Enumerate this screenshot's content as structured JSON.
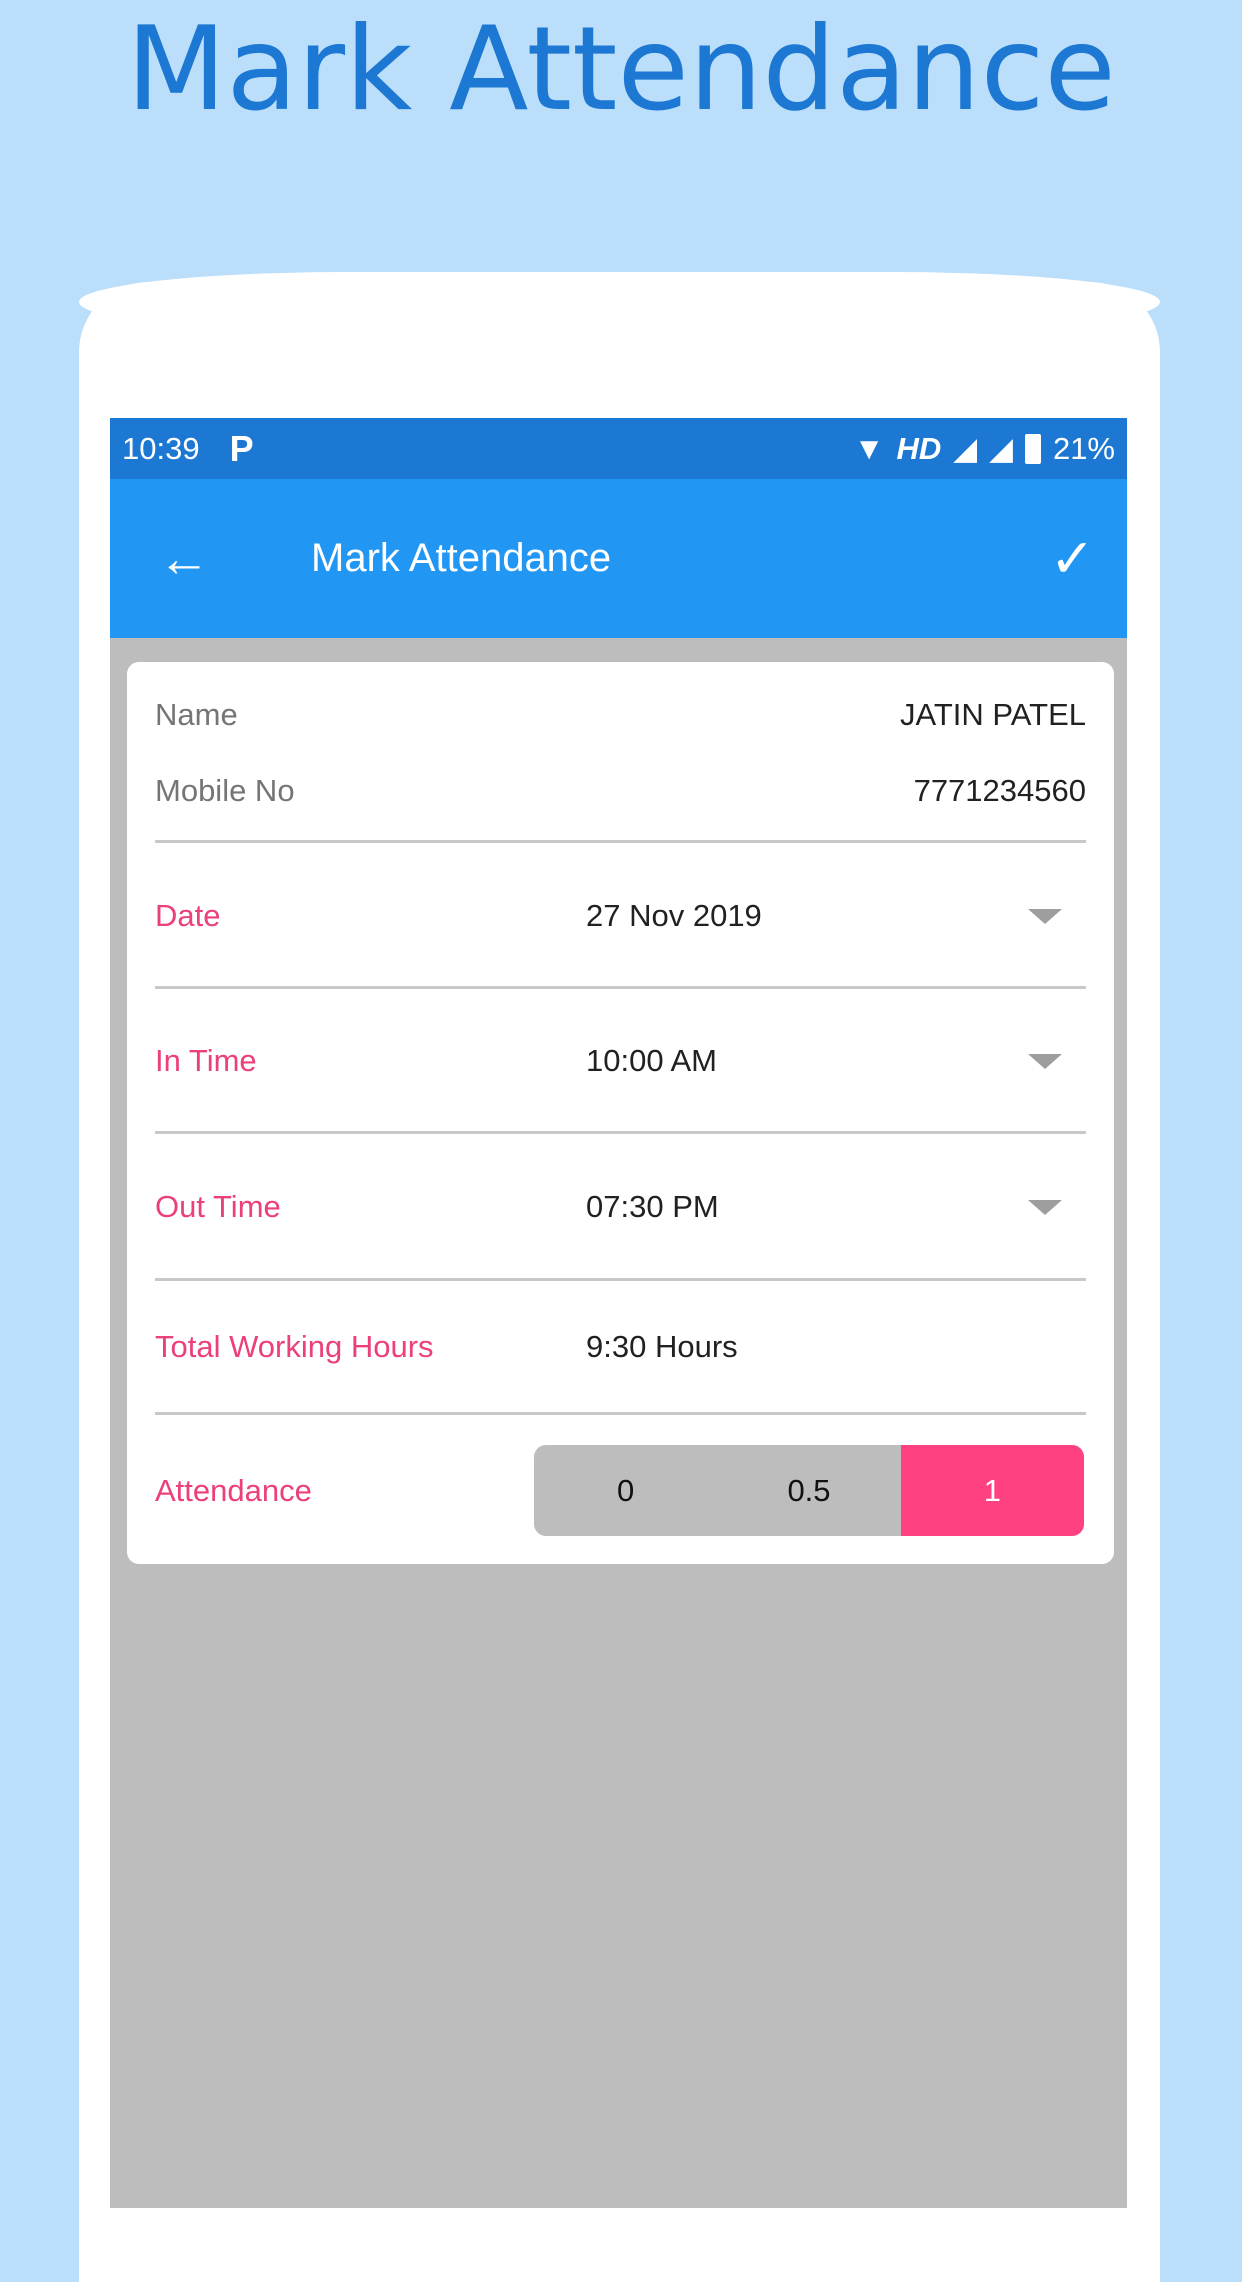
{
  "headline": "Mark Attendance",
  "status": {
    "time": "10:39",
    "app_icon": "p-icon",
    "network": "HD",
    "battery": "21%"
  },
  "toolbar": {
    "title": "Mark Attendance",
    "back_icon": "arrow-left-icon",
    "save_icon": "check-icon"
  },
  "info": {
    "name_label": "Name",
    "name_value": "JATIN PATEL",
    "mobile_label": "Mobile No",
    "mobile_value": "7771234560"
  },
  "fields": {
    "date": {
      "label": "Date",
      "value": "27 Nov 2019"
    },
    "in_time": {
      "label": "In Time",
      "value": "10:00 AM"
    },
    "out_time": {
      "label": "Out Time",
      "value": "07:30 PM"
    },
    "total": {
      "label": "Total Working Hours",
      "value": "9:30 Hours"
    }
  },
  "attendance": {
    "label": "Attendance",
    "options": [
      "0",
      "0.5",
      "1"
    ],
    "selected": "1"
  },
  "colors": {
    "primary": "#2196f3",
    "primary_dark": "#1c78d2",
    "accent": "#ff4081",
    "label": "#ec407a"
  }
}
